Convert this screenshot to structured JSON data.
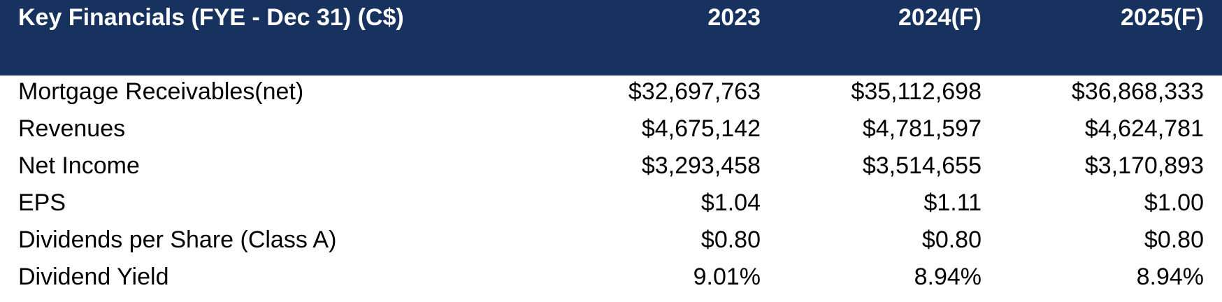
{
  "header": {
    "title": "Key Financials (FYE - Dec 31) (C$)",
    "years": [
      "2023",
      "2024(F)",
      "2025(F)"
    ]
  },
  "rows": [
    {
      "label": "Mortgage Receivables(net)",
      "values": [
        "$32,697,763",
        "$35,112,698",
        "$36,868,333"
      ]
    },
    {
      "label": "Revenues",
      "values": [
        "$4,675,142",
        "$4,781,597",
        "$4,624,781"
      ]
    },
    {
      "label": "Net Income",
      "values": [
        "$3,293,458",
        "$3,514,655",
        "$3,170,893"
      ]
    },
    {
      "label": "EPS",
      "values": [
        "$1.04",
        "$1.11",
        "$1.00"
      ]
    },
    {
      "label": "Dividends per Share (Class A)",
      "values": [
        "$0.80",
        "$0.80",
        "$0.80"
      ]
    },
    {
      "label": "Dividend Yield",
      "values": [
        "9.01%",
        "8.94%",
        "8.94%"
      ]
    }
  ],
  "colors": {
    "header_bg": "#17325e",
    "header_text": "#ffffff",
    "body_text": "#000000"
  }
}
